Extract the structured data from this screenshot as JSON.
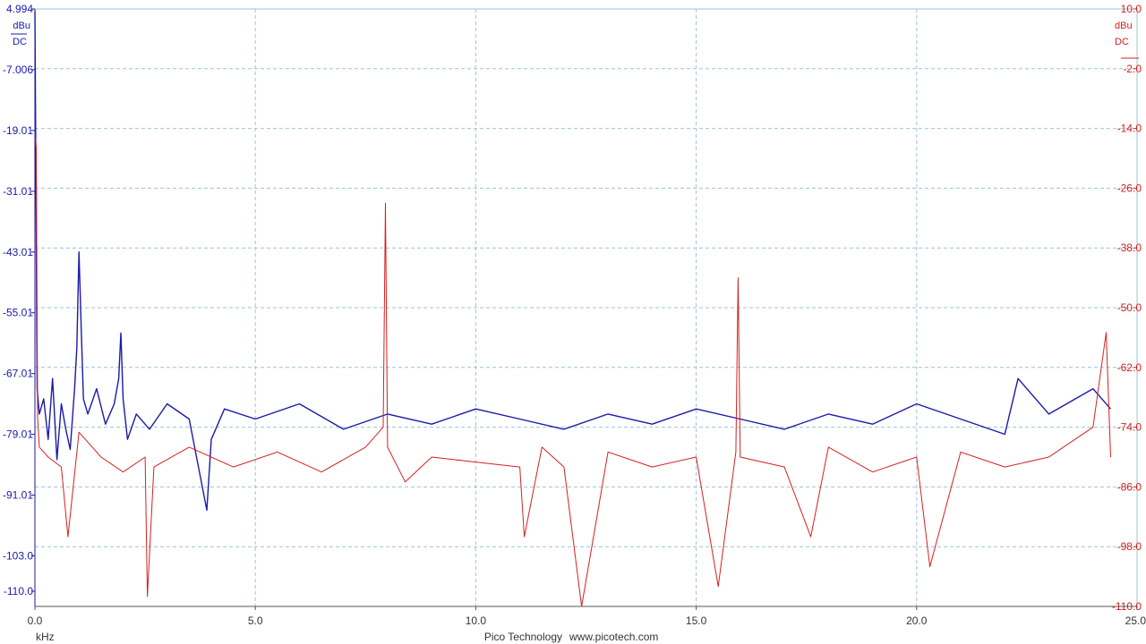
{
  "chart_data": {
    "type": "line",
    "x_unit": "kHz",
    "xlim": [
      0,
      25
    ],
    "x_ticks": [
      "0.0",
      "5.0",
      "10.0",
      "15.0",
      "20.0",
      "25.0"
    ],
    "left_axis": {
      "unit_top": "dBu",
      "unit_bottom": "DC",
      "ylim": [
        -113,
        4.994
      ],
      "ticks": [
        {
          "value": 4.994,
          "label": "4.994"
        },
        {
          "value": -7.006,
          "label": "-7.006"
        },
        {
          "value": -19.01,
          "label": "-19.01"
        },
        {
          "value": -31.01,
          "label": "-31.01"
        },
        {
          "value": -43.01,
          "label": "-43.01"
        },
        {
          "value": -55.01,
          "label": "-55.01"
        },
        {
          "value": -67.01,
          "label": "-67.01"
        },
        {
          "value": -79.01,
          "label": "-79.01"
        },
        {
          "value": -91.01,
          "label": "-91.01"
        },
        {
          "value": -103.0,
          "label": "-103.0"
        },
        {
          "value": -110.0,
          "label": "-110.0"
        }
      ],
      "color": "#1a1aa8"
    },
    "right_axis": {
      "unit_top": "dBu",
      "unit_bottom": "DC",
      "ylim": [
        -110.0,
        10.0
      ],
      "ticks": [
        {
          "value": 10.0,
          "label": "10.0"
        },
        {
          "value": -2.0,
          "label": "-2.0"
        },
        {
          "value": -14.0,
          "label": "-14.0"
        },
        {
          "value": -26.0,
          "label": "-26.0"
        },
        {
          "value": -38.0,
          "label": "-38.0"
        },
        {
          "value": -50.0,
          "label": "-50.0"
        },
        {
          "value": -62.0,
          "label": "-62.0"
        },
        {
          "value": -74.0,
          "label": "-74.0"
        },
        {
          "value": -86.0,
          "label": "-86.0"
        },
        {
          "value": -98.0,
          "label": "-98.0"
        },
        {
          "value": -110.0,
          "label": "-110.0"
        }
      ],
      "color": "#d42020"
    },
    "grid": true,
    "series": [
      {
        "axis": "left",
        "color": "#1a1aa8",
        "x": [
          0.0,
          0.02,
          0.05,
          0.1,
          0.2,
          0.3,
          0.4,
          0.5,
          0.6,
          0.7,
          0.8,
          0.9,
          0.95,
          1.0,
          1.05,
          1.1,
          1.2,
          1.4,
          1.6,
          1.8,
          1.9,
          1.95,
          2.0,
          2.1,
          2.3,
          2.6,
          3.0,
          3.5,
          3.9,
          4.0,
          4.3,
          5.0,
          6.0,
          7.0,
          8.0,
          9.0,
          10.0,
          11.0,
          12.0,
          13.0,
          14.0,
          15.0,
          16.0,
          17.0,
          18.0,
          19.0,
          20.0,
          21.0,
          22.0,
          22.3,
          23.0,
          24.0,
          24.4
        ],
        "y": [
          4.5,
          -25,
          -70,
          -75,
          -72,
          -80,
          -68,
          -84,
          -73,
          -78,
          -82,
          -70,
          -62,
          -43,
          -58,
          -72,
          -75,
          -70,
          -77,
          -73,
          -68,
          -59,
          -72,
          -80,
          -75,
          -78,
          -73,
          -76,
          -94,
          -80,
          -74,
          -76,
          -73,
          -78,
          -75,
          -77,
          -74,
          -76,
          -78,
          -75,
          -77,
          -74,
          -76,
          -78,
          -75,
          -77,
          -73,
          -76,
          -79,
          -68,
          -75,
          -70,
          -74
        ]
      },
      {
        "axis": "right",
        "color": "#d42020",
        "x": [
          0.0,
          0.03,
          0.06,
          0.1,
          0.3,
          0.6,
          0.75,
          1.0,
          1.5,
          2.0,
          2.5,
          2.55,
          2.7,
          3.5,
          4.5,
          5.5,
          6.5,
          7.5,
          7.9,
          7.95,
          8.0,
          8.4,
          9.0,
          10.0,
          11.0,
          11.1,
          11.5,
          12.0,
          12.4,
          13.0,
          14.0,
          15.0,
          15.5,
          15.9,
          15.95,
          16.0,
          17.0,
          17.6,
          18.0,
          19.0,
          20.0,
          20.3,
          21.0,
          22.0,
          23.0,
          24.0,
          24.3,
          24.4
        ],
        "y": [
          -14,
          -18,
          -72,
          -78,
          -80,
          -82,
          -96,
          -75,
          -80,
          -83,
          -80,
          -108,
          -82,
          -78,
          -82,
          -79,
          -83,
          -78,
          -74,
          -29,
          -78,
          -85,
          -80,
          -81,
          -82,
          -96,
          -78,
          -82,
          -110,
          -79,
          -82,
          -80,
          -106,
          -79,
          -44,
          -80,
          -82,
          -96,
          -78,
          -83,
          -80,
          -102,
          -79,
          -82,
          -80,
          -74,
          -55,
          -80
        ]
      }
    ]
  },
  "footer": {
    "brand": "Pico Technology",
    "url": "www.picotech.com"
  }
}
